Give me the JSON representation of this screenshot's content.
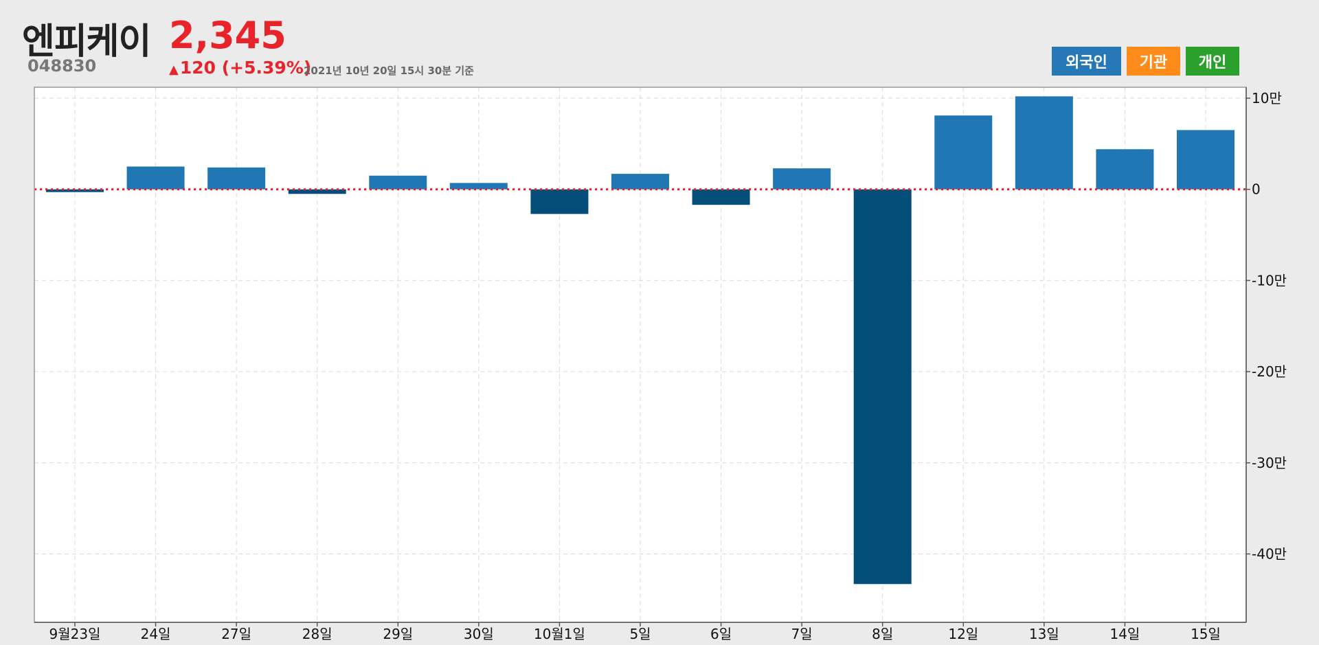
{
  "stock": {
    "name": "엔피케이",
    "code": "048830",
    "price": "2,345",
    "change": "120 (+5.39%)",
    "change_symbol": "▲",
    "as_of": "2021년 10년 20일 15시 30분 기준"
  },
  "buttons": {
    "foreign": "외국인",
    "institution": "기관",
    "individual": "개인"
  },
  "colors": {
    "positive_bar": "#2177b4",
    "negative_bar": "#024e78",
    "zero_line": "#e8232a",
    "foreign": "#2679b6",
    "institution": "#ff8c1a",
    "individual": "#2ca02c"
  },
  "chart_data": {
    "type": "bar",
    "categories": [
      "9월23일",
      "24일",
      "27일",
      "28일",
      "29일",
      "30일",
      "10월1일",
      "5일",
      "6일",
      "7일",
      "8일",
      "12일",
      "13일",
      "14일",
      "15일"
    ],
    "values": [
      -3000,
      25000,
      24000,
      -5000,
      15000,
      7000,
      -27000,
      17000,
      -17000,
      23000,
      -433000,
      81000,
      102000,
      44000,
      65000
    ],
    "ylim": [
      -475000,
      112000
    ],
    "yticks": [
      100000,
      0,
      -100000,
      -200000,
      -300000,
      -400000
    ],
    "ytick_labels": [
      "10만",
      "0",
      "-10만",
      "-20만",
      "-30만",
      "-40만"
    ],
    "grid": true,
    "zero_line": "dotted"
  }
}
